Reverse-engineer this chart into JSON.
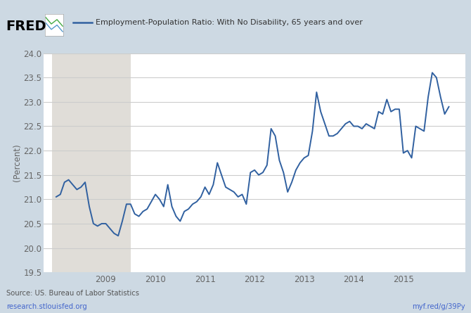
{
  "title": "Employment-Population Ratio: With No Disability, 65 years and over",
  "ylabel": "(Percent)",
  "ylim": [
    19.5,
    24.0
  ],
  "yticks": [
    19.5,
    20.0,
    20.5,
    21.0,
    21.5,
    22.0,
    22.5,
    23.0,
    23.5,
    24.0
  ],
  "line_color": "#3060a0",
  "line_width": 1.4,
  "bg_color": "#cdd9e3",
  "plot_bg_color": "#ffffff",
  "shaded_region_color": "#e0ddd8",
  "source_text1": "Source: US. Bureau of Labor Statistics",
  "source_text2": "research.stlouisfed.org",
  "right_text": "myf.red/g/39Py",
  "recession_start": 2007.917,
  "recession_end": 2009.5,
  "xlim_left": 2007.75,
  "xlim_right": 2016.25,
  "xticks": [
    2009,
    2010,
    2011,
    2012,
    2013,
    2014,
    2015
  ],
  "dates": [
    2008.0,
    2008.083,
    2008.167,
    2008.25,
    2008.333,
    2008.417,
    2008.5,
    2008.583,
    2008.667,
    2008.75,
    2008.833,
    2008.917,
    2009.0,
    2009.083,
    2009.167,
    2009.25,
    2009.333,
    2009.417,
    2009.5,
    2009.583,
    2009.667,
    2009.75,
    2009.833,
    2009.917,
    2010.0,
    2010.083,
    2010.167,
    2010.25,
    2010.333,
    2010.417,
    2010.5,
    2010.583,
    2010.667,
    2010.75,
    2010.833,
    2010.917,
    2011.0,
    2011.083,
    2011.167,
    2011.25,
    2011.333,
    2011.417,
    2011.5,
    2011.583,
    2011.667,
    2011.75,
    2011.833,
    2011.917,
    2012.0,
    2012.083,
    2012.167,
    2012.25,
    2012.333,
    2012.417,
    2012.5,
    2012.583,
    2012.667,
    2012.75,
    2012.833,
    2012.917,
    2013.0,
    2013.083,
    2013.167,
    2013.25,
    2013.333,
    2013.417,
    2013.5,
    2013.583,
    2013.667,
    2013.75,
    2013.833,
    2013.917,
    2014.0,
    2014.083,
    2014.167,
    2014.25,
    2014.333,
    2014.417,
    2014.5,
    2014.583,
    2014.667,
    2014.75,
    2014.833,
    2014.917,
    2015.0,
    2015.083,
    2015.167,
    2015.25,
    2015.333,
    2015.417,
    2015.5,
    2015.583,
    2015.667,
    2015.75,
    2015.833,
    2015.917
  ],
  "values": [
    21.05,
    21.1,
    21.35,
    21.4,
    21.3,
    21.2,
    21.25,
    21.35,
    20.85,
    20.5,
    20.45,
    20.5,
    20.5,
    20.4,
    20.3,
    20.25,
    20.55,
    20.9,
    20.9,
    20.7,
    20.65,
    20.75,
    20.8,
    20.95,
    21.1,
    21.0,
    20.85,
    21.3,
    20.85,
    20.65,
    20.55,
    20.75,
    20.8,
    20.9,
    20.95,
    21.05,
    21.25,
    21.1,
    21.3,
    21.75,
    21.5,
    21.25,
    21.2,
    21.15,
    21.05,
    21.1,
    20.9,
    21.55,
    21.6,
    21.5,
    21.55,
    21.7,
    22.45,
    22.3,
    21.8,
    21.55,
    21.15,
    21.35,
    21.6,
    21.75,
    21.85,
    21.9,
    22.4,
    23.2,
    22.8,
    22.55,
    22.3,
    22.3,
    22.35,
    22.45,
    22.55,
    22.6,
    22.5,
    22.5,
    22.45,
    22.55,
    22.5,
    22.45,
    22.8,
    22.75,
    23.05,
    22.8,
    22.85,
    22.85,
    21.95,
    22.0,
    21.85,
    22.5,
    22.45,
    22.4,
    23.1,
    23.6,
    23.5,
    23.1,
    22.75,
    22.9
  ],
  "fred_color": "#000000",
  "link_color": "#4466cc",
  "tick_color": "#666666",
  "grid_color": "#cccccc"
}
